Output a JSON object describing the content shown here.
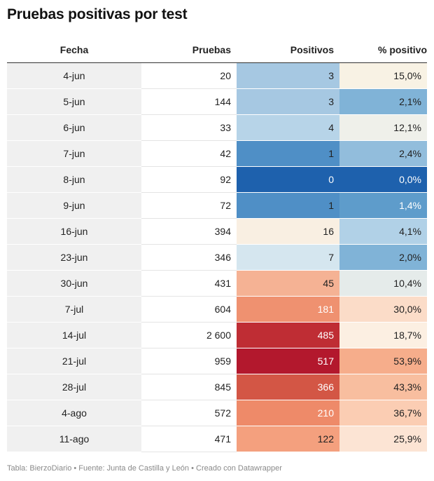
{
  "title": "Pruebas positivas por test",
  "footer": "Tabla: BierzoDiario • Fuente: Junta de Castilla y León • Creado con Datawrapper",
  "chart_data": {
    "type": "table",
    "columns": [
      "Fecha",
      "Pruebas",
      "Positivos",
      "% positivo"
    ],
    "rows": [
      {
        "fecha": "4-jun",
        "pruebas": "20",
        "positivos": "3",
        "pct": "15,0%",
        "pos_color": "#a6c8e2",
        "pos_text": "#222222",
        "pct_color": "#f8f2e4",
        "pct_text": "#222222"
      },
      {
        "fecha": "5-jun",
        "pruebas": "144",
        "positivos": "3",
        "pct": "2,1%",
        "pos_color": "#a6c8e2",
        "pos_text": "#222222",
        "pct_color": "#80b3d7",
        "pct_text": "#222222"
      },
      {
        "fecha": "6-jun",
        "pruebas": "33",
        "positivos": "4",
        "pct": "12,1%",
        "pos_color": "#b7d4e8",
        "pos_text": "#222222",
        "pct_color": "#eff0ea",
        "pct_text": "#222222"
      },
      {
        "fecha": "7-jun",
        "pruebas": "42",
        "positivos": "1",
        "pct": "2,4%",
        "pos_color": "#4f8fc6",
        "pos_text": "#222222",
        "pct_color": "#92bddc",
        "pct_text": "#222222"
      },
      {
        "fecha": "8-jun",
        "pruebas": "92",
        "positivos": "0",
        "pct": "0,0%",
        "pos_color": "#1e61ad",
        "pos_text": "#ffffff",
        "pct_color": "#1e61ad",
        "pct_text": "#ffffff"
      },
      {
        "fecha": "9-jun",
        "pruebas": "72",
        "positivos": "1",
        "pct": "1,4%",
        "pos_color": "#4f8fc6",
        "pos_text": "#222222",
        "pct_color": "#5e9ccb",
        "pct_text": "#ffffff"
      },
      {
        "fecha": "16-jun",
        "pruebas": "394",
        "positivos": "16",
        "pct": "4,1%",
        "pos_color": "#f9efe2",
        "pos_text": "#222222",
        "pct_color": "#b1d1e7",
        "pct_text": "#222222"
      },
      {
        "fecha": "23-jun",
        "pruebas": "346",
        "positivos": "7",
        "pct": "2,0%",
        "pos_color": "#d5e6ef",
        "pos_text": "#222222",
        "pct_color": "#80b3d7",
        "pct_text": "#222222"
      },
      {
        "fecha": "30-jun",
        "pruebas": "431",
        "positivos": "45",
        "pct": "10,4%",
        "pos_color": "#f5b294",
        "pos_text": "#222222",
        "pct_color": "#e5ebea",
        "pct_text": "#222222"
      },
      {
        "fecha": "7-jul",
        "pruebas": "604",
        "positivos": "181",
        "pct": "30,0%",
        "pos_color": "#ef9170",
        "pos_text": "#ffffff",
        "pct_color": "#fbdcc8",
        "pct_text": "#222222"
      },
      {
        "fecha": "14-jul",
        "pruebas": "2 600",
        "positivos": "485",
        "pct": "18,7%",
        "pos_color": "#bf2d34",
        "pos_text": "#ffffff",
        "pct_color": "#fcefe2",
        "pct_text": "#222222"
      },
      {
        "fecha": "21-jul",
        "pruebas": "959",
        "positivos": "517",
        "pct": "53,9%",
        "pos_color": "#b3182d",
        "pos_text": "#ffffff",
        "pct_color": "#f6ad8b",
        "pct_text": "#222222"
      },
      {
        "fecha": "28-jul",
        "pruebas": "845",
        "positivos": "366",
        "pct": "43,3%",
        "pos_color": "#d35645",
        "pos_text": "#ffffff",
        "pct_color": "#f8be9f",
        "pct_text": "#222222"
      },
      {
        "fecha": "4-ago",
        "pruebas": "572",
        "positivos": "210",
        "pct": "36,7%",
        "pos_color": "#ee8a69",
        "pos_text": "#ffffff",
        "pct_color": "#fbcdb3",
        "pct_text": "#222222"
      },
      {
        "fecha": "11-ago",
        "pruebas": "471",
        "positivos": "122",
        "pct": "25,9%",
        "pos_color": "#f4a07e",
        "pos_text": "#222222",
        "pct_color": "#fce4d4",
        "pct_text": "#222222"
      }
    ]
  }
}
